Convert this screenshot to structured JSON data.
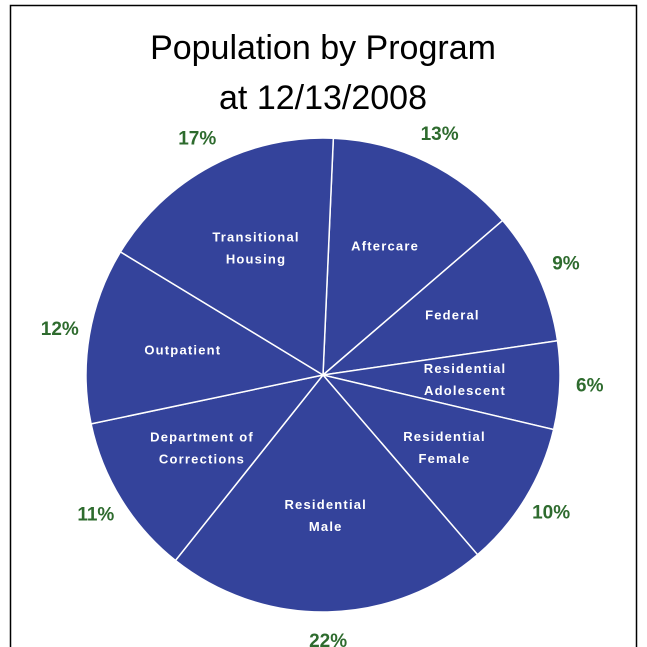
{
  "chart_data": {
    "type": "pie",
    "title": [
      "Population by Program",
      "at 12/13/2008"
    ],
    "categories": [
      "Aftercare",
      "Federal",
      "Residential Adolescent",
      "Residential Female",
      "Residential Male",
      "Department of Corrections",
      "Outpatient",
      "Transitional Housing"
    ],
    "values": [
      13,
      9,
      6,
      10,
      22,
      11,
      12,
      17
    ],
    "value_labels": [
      "13%",
      "9%",
      "6%",
      "10%",
      "22%",
      "11%",
      "12%",
      "17%"
    ],
    "color": "#34439b",
    "label_color": "#2e6b2e"
  }
}
